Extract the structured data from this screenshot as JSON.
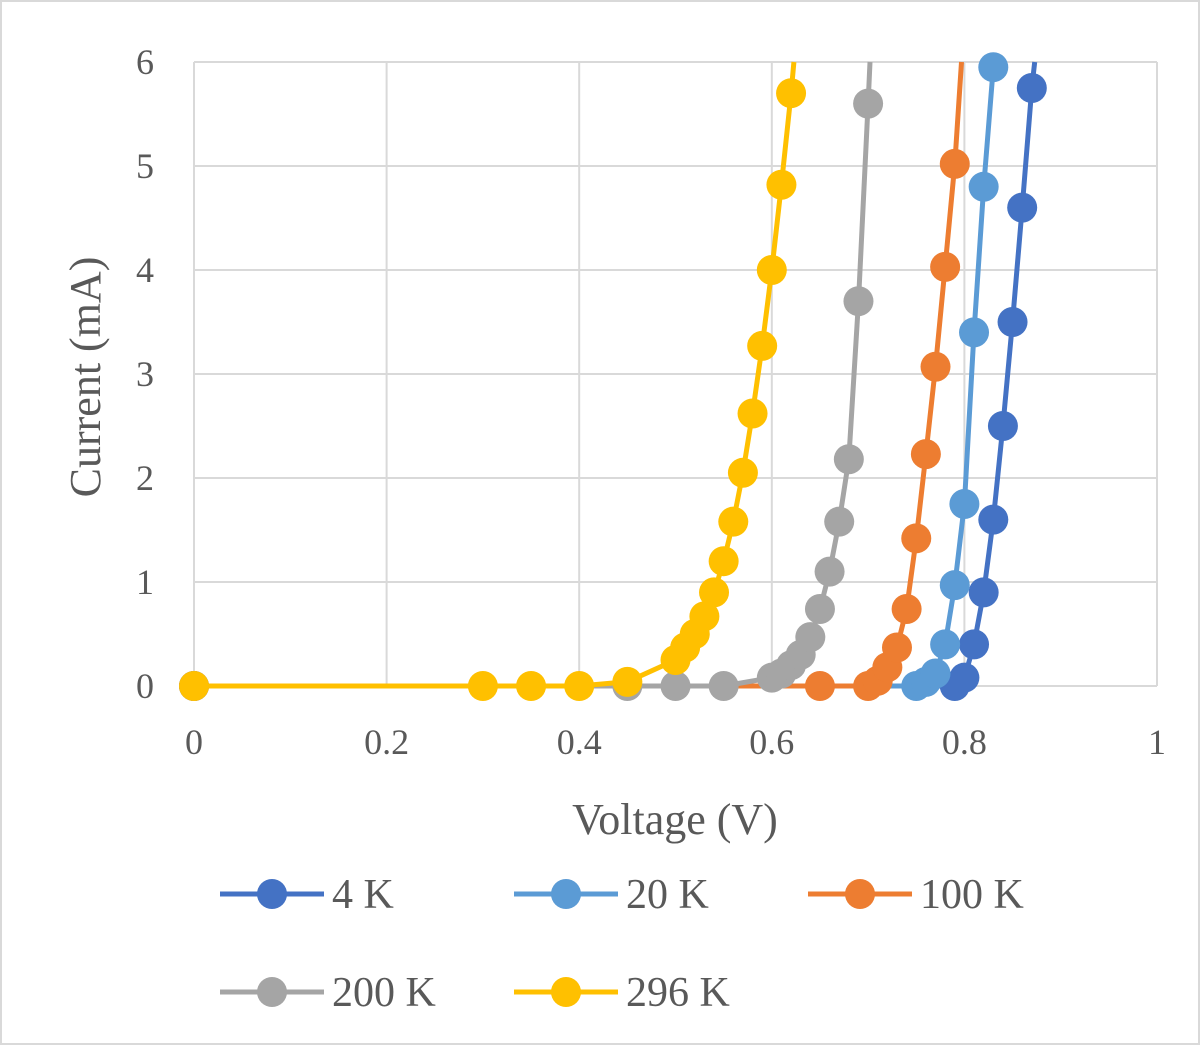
{
  "chart_data": {
    "type": "scatter",
    "mode": "lines+markers",
    "xlabel": "Voltage (V)",
    "ylabel": "Current (mA)",
    "xlim": [
      0,
      1
    ],
    "ylim": [
      0,
      6
    ],
    "x_ticks": [
      0,
      0.2,
      0.4,
      0.6,
      0.8,
      1
    ],
    "x_tick_labels": [
      "0",
      "0.2",
      "0.4",
      "0.6",
      "0.8",
      "1"
    ],
    "y_ticks": [
      0,
      1,
      2,
      3,
      4,
      5,
      6
    ],
    "y_tick_labels": [
      "0",
      "1",
      "2",
      "3",
      "4",
      "5",
      "6"
    ],
    "grid": true,
    "legend_position": "bottom",
    "series": [
      {
        "name": "4 K",
        "color": "#4472c4",
        "points": [
          [
            0,
            0
          ],
          [
            0.79,
            0
          ],
          [
            0.8,
            0.08
          ],
          [
            0.81,
            0.4
          ],
          [
            0.82,
            0.9
          ],
          [
            0.83,
            1.6
          ],
          [
            0.84,
            2.5
          ],
          [
            0.85,
            3.5
          ],
          [
            0.86,
            4.6
          ],
          [
            0.87,
            5.75
          ]
        ],
        "line_end": [
          0.873,
          6.0
        ]
      },
      {
        "name": "20 K",
        "color": "#5b9bd5",
        "points": [
          [
            0,
            0
          ],
          [
            0.75,
            0
          ],
          [
            0.76,
            0.04
          ],
          [
            0.77,
            0.12
          ],
          [
            0.78,
            0.4
          ],
          [
            0.79,
            0.97
          ],
          [
            0.8,
            1.75
          ],
          [
            0.81,
            3.4
          ],
          [
            0.82,
            4.8
          ],
          [
            0.83,
            5.95
          ]
        ],
        "line_end": [
          0.831,
          6.0
        ]
      },
      {
        "name": "100 K",
        "color": "#ed7d31",
        "points": [
          [
            0,
            0
          ],
          [
            0.65,
            0
          ],
          [
            0.7,
            0
          ],
          [
            0.71,
            0.05
          ],
          [
            0.72,
            0.18
          ],
          [
            0.73,
            0.37
          ],
          [
            0.74,
            0.74
          ],
          [
            0.75,
            1.42
          ],
          [
            0.76,
            2.23
          ],
          [
            0.77,
            3.07
          ],
          [
            0.78,
            4.03
          ],
          [
            0.79,
            5.02
          ]
        ],
        "line_end": [
          0.797,
          6.0
        ]
      },
      {
        "name": "200 K",
        "color": "#a5a5a5",
        "points": [
          [
            0,
            0
          ],
          [
            0.45,
            0
          ],
          [
            0.5,
            0
          ],
          [
            0.55,
            0
          ],
          [
            0.6,
            0.08
          ],
          [
            0.61,
            0.12
          ],
          [
            0.62,
            0.2
          ],
          [
            0.63,
            0.3
          ],
          [
            0.64,
            0.47
          ],
          [
            0.65,
            0.74
          ],
          [
            0.66,
            1.1
          ],
          [
            0.67,
            1.58
          ],
          [
            0.68,
            2.18
          ],
          [
            0.69,
            3.7
          ],
          [
            0.7,
            5.6
          ]
        ],
        "line_end": [
          0.702,
          6.0
        ]
      },
      {
        "name": "296 K",
        "color": "#ffc000",
        "points": [
          [
            0,
            0
          ],
          [
            0.3,
            0
          ],
          [
            0.35,
            0
          ],
          [
            0.4,
            0
          ],
          [
            0.45,
            0.04
          ],
          [
            0.5,
            0.25
          ],
          [
            0.51,
            0.37
          ],
          [
            0.52,
            0.5
          ],
          [
            0.53,
            0.67
          ],
          [
            0.54,
            0.9
          ],
          [
            0.55,
            1.2
          ],
          [
            0.56,
            1.58
          ],
          [
            0.57,
            2.05
          ],
          [
            0.58,
            2.62
          ],
          [
            0.59,
            3.27
          ],
          [
            0.6,
            4.0
          ],
          [
            0.61,
            4.82
          ],
          [
            0.62,
            5.7
          ]
        ],
        "line_end": [
          0.623,
          6.0
        ]
      }
    ]
  }
}
